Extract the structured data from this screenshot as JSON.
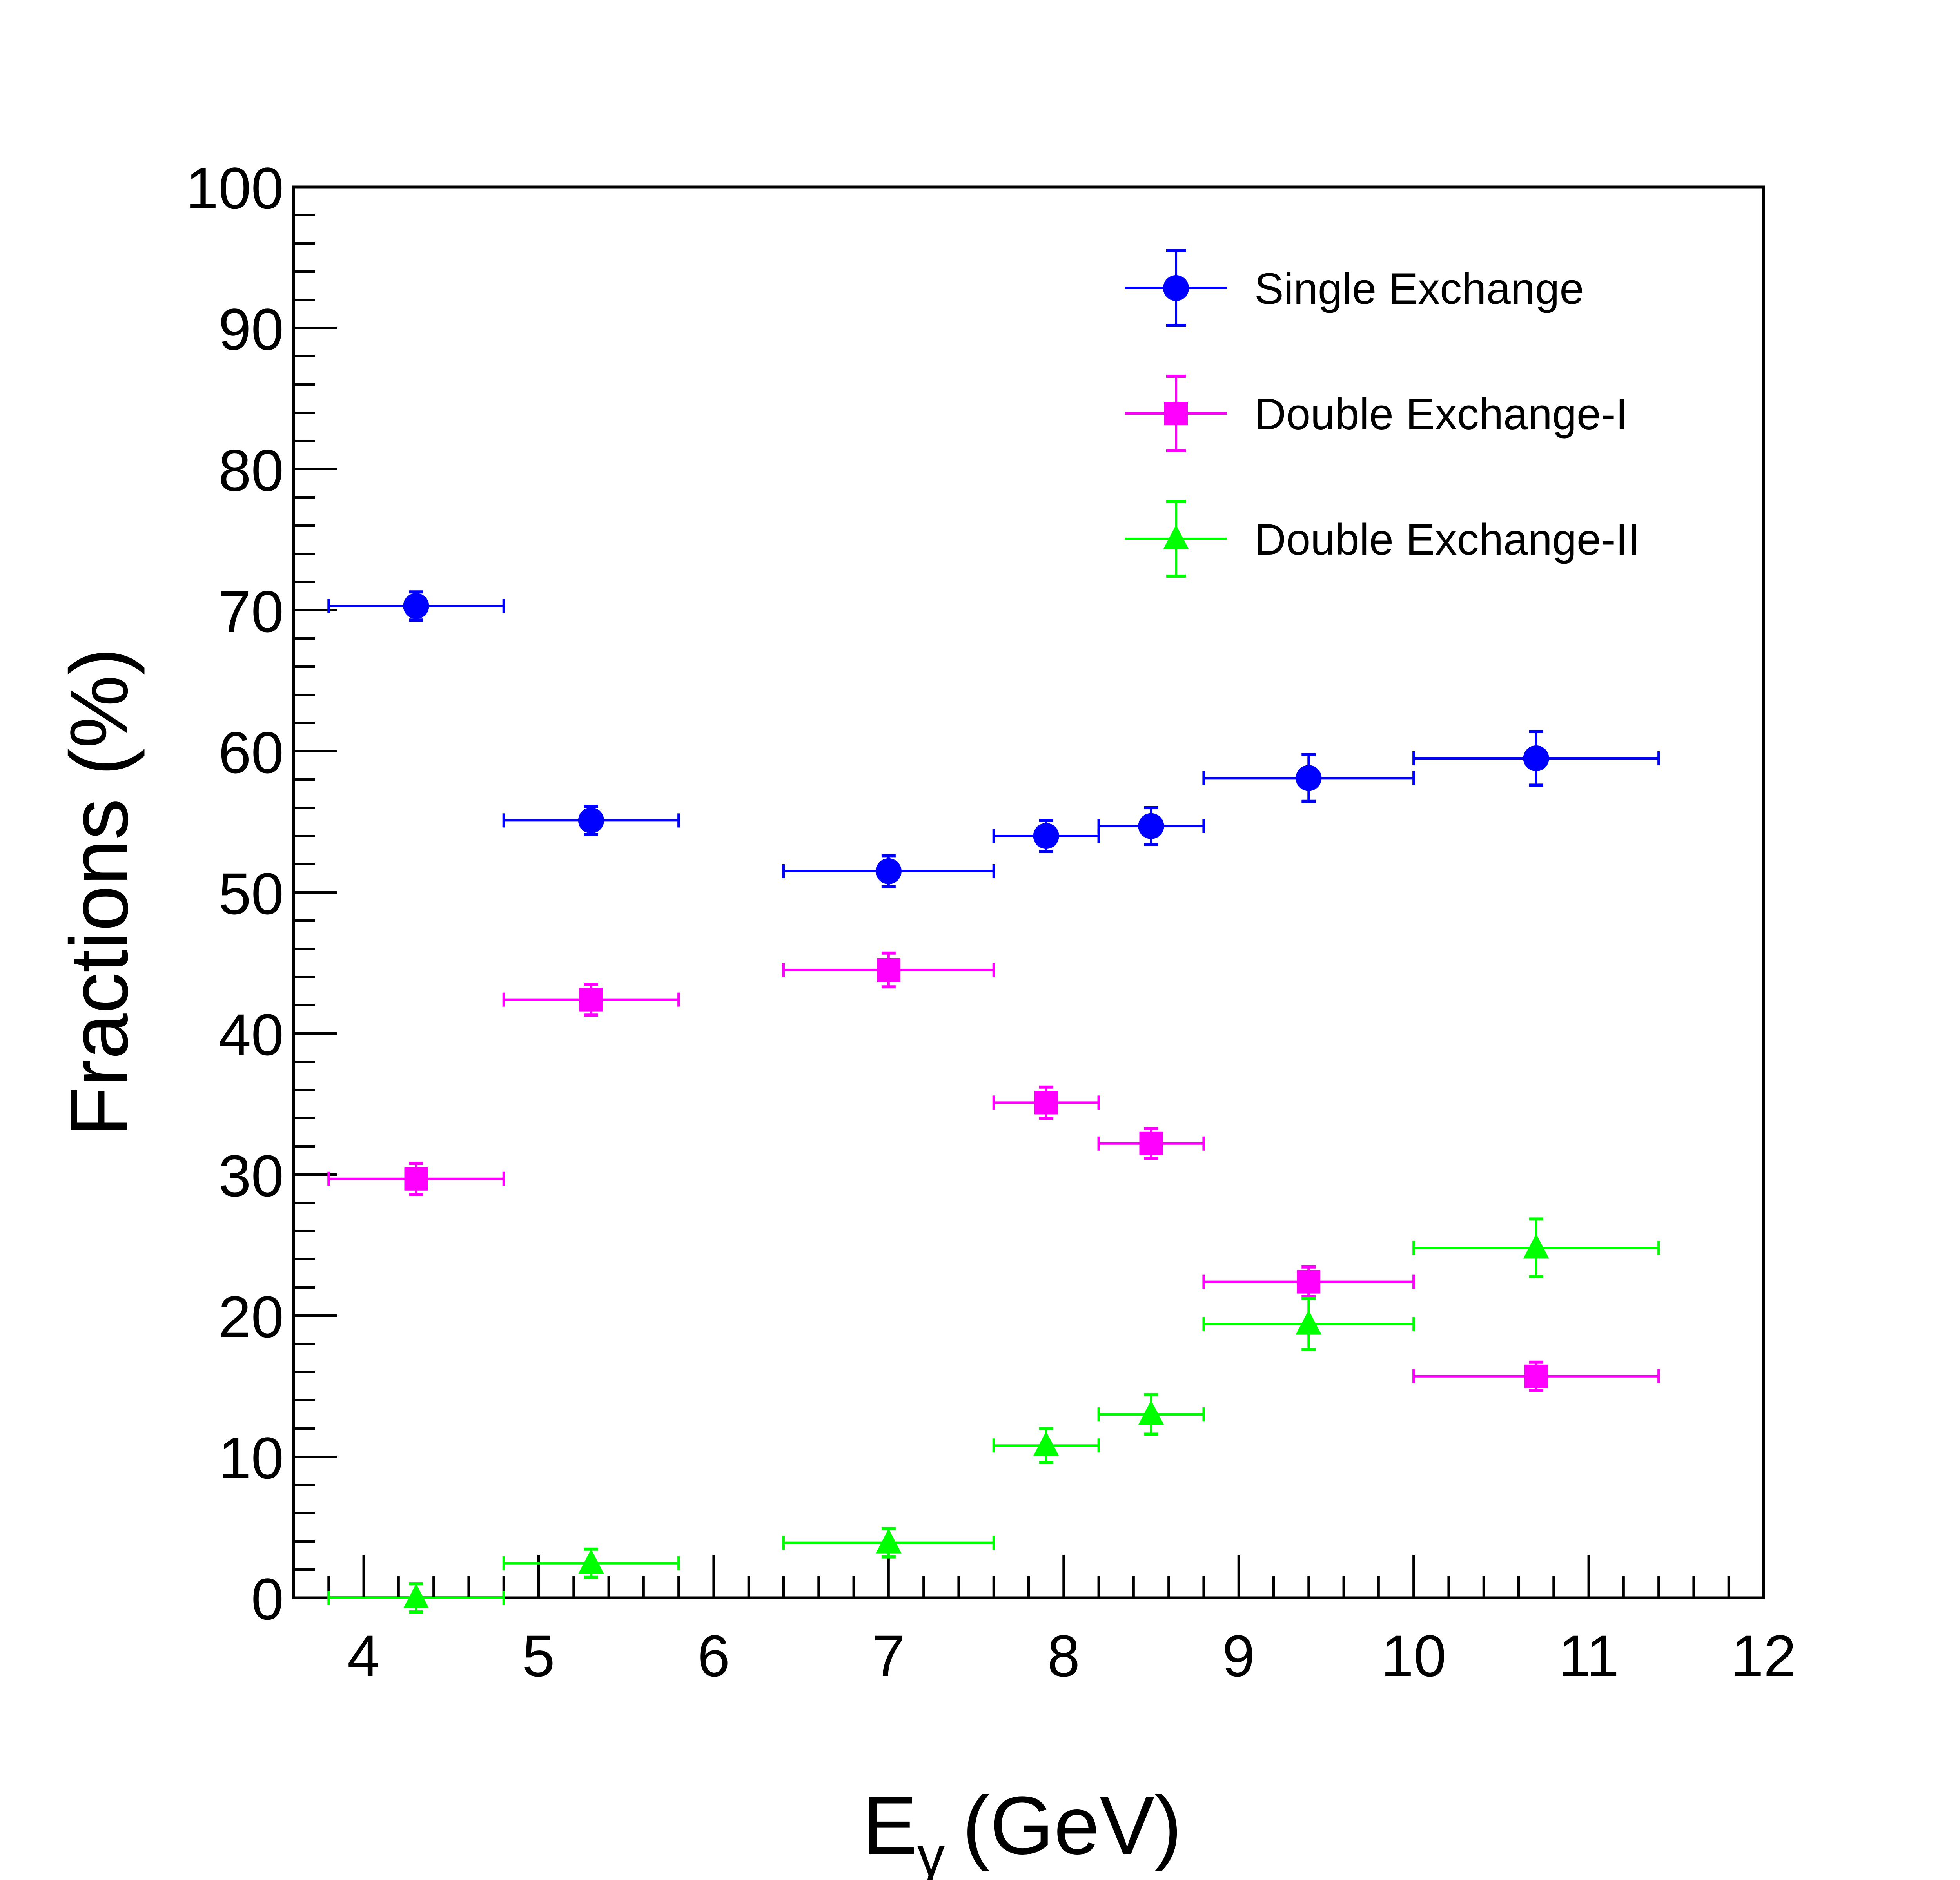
{
  "chart_data": {
    "type": "scatter",
    "title": "",
    "xlabel": "E",
    "xlabel_subscript": "γ",
    "xlabel_unit": "(GeV)",
    "ylabel": "Fractions (%)",
    "xlim": [
      3.6,
      12
    ],
    "ylim": [
      0,
      100
    ],
    "x_ticks": [
      4,
      5,
      6,
      7,
      8,
      9,
      10,
      11,
      12
    ],
    "x_tick_labels": [
      "4",
      "5",
      "6",
      "7",
      "8",
      "9",
      "10",
      "11",
      "12"
    ],
    "y_ticks": [
      0,
      10,
      20,
      30,
      40,
      50,
      60,
      70,
      80,
      90,
      100
    ],
    "y_tick_labels": [
      "0",
      "10",
      "20",
      "30",
      "40",
      "50",
      "60",
      "70",
      "80",
      "90",
      "100"
    ],
    "grid": false,
    "legend_position": "top-right",
    "x": [
      4.3,
      5.3,
      7.0,
      7.9,
      8.5,
      9.4,
      10.7
    ],
    "x_bins": [
      [
        3.8,
        4.8
      ],
      [
        4.8,
        5.8
      ],
      [
        6.4,
        7.6
      ],
      [
        7.6,
        8.2
      ],
      [
        8.2,
        8.8
      ],
      [
        8.8,
        10.0
      ],
      [
        10.0,
        11.4
      ]
    ],
    "series": [
      {
        "name": "Single Exchange",
        "marker": "circle",
        "color": "#0000ff",
        "values": [
          70.3,
          55.1,
          51.5,
          54.0,
          54.7,
          58.1,
          59.5
        ],
        "errors": [
          1.0,
          1.0,
          1.1,
          1.1,
          1.3,
          1.65,
          1.9
        ]
      },
      {
        "name": "Double Exchange-I",
        "marker": "square",
        "color": "#ff00ff",
        "values": [
          29.7,
          42.4,
          44.5,
          35.1,
          32.2,
          22.4,
          15.7
        ],
        "errors": [
          1.1,
          1.1,
          1.2,
          1.1,
          1.05,
          1.05,
          1.0
        ]
      },
      {
        "name": "Double Exchange-II",
        "marker": "triangle",
        "color": "#00ff00",
        "values": [
          0.0,
          2.45,
          3.9,
          10.8,
          13.0,
          19.4,
          24.8
        ],
        "errors": [
          1.0,
          1.0,
          1.0,
          1.2,
          1.4,
          1.8,
          2.05
        ]
      }
    ]
  }
}
